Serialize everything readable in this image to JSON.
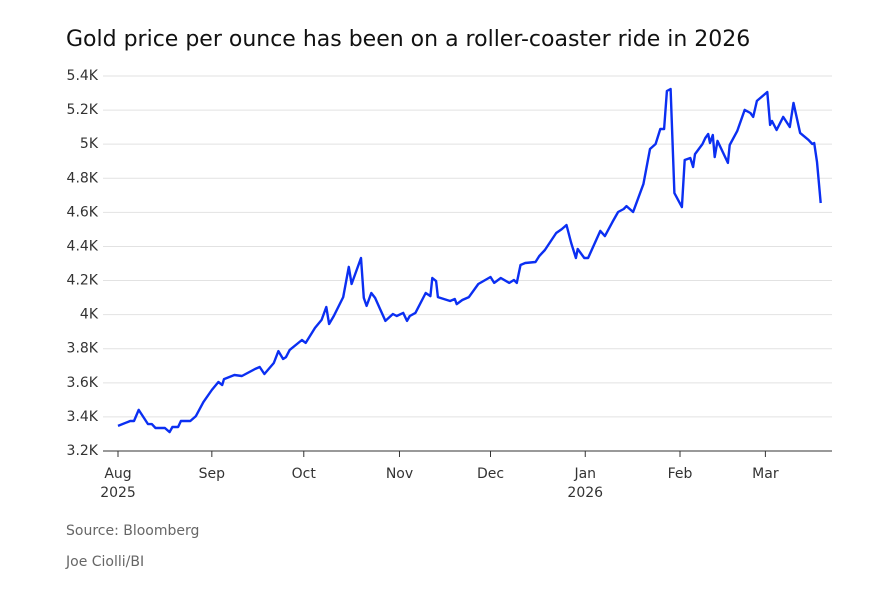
{
  "chart_data": {
    "type": "line",
    "title": "Gold price per ounce has been on a roller-coaster ride in 2026",
    "source": "Source: Bloomberg",
    "credit": "Joe Ciolli/BI",
    "x": [
      0,
      0.13,
      0.17,
      0.22,
      0.32,
      0.36,
      0.4,
      0.5,
      0.55,
      0.58,
      0.64,
      0.67,
      0.77,
      0.83,
      0.91,
      1.0,
      1.07,
      1.11,
      1.13,
      1.24,
      1.32,
      1.46,
      1.51,
      1.56,
      1.66,
      1.71,
      1.76,
      1.79,
      1.83,
      1.96,
      2.0,
      2.1,
      2.17,
      2.22,
      2.25,
      2.3,
      2.4,
      2.46,
      2.49,
      2.59,
      2.62,
      2.65,
      2.7,
      2.74,
      2.85,
      2.93,
      2.97,
      3.04,
      3.08,
      3.11,
      3.17,
      3.28,
      3.33,
      3.35,
      3.39,
      3.41,
      3.54,
      3.59,
      3.61,
      3.67,
      3.74,
      3.84,
      3.97,
      4.01,
      4.08,
      4.17,
      4.22,
      4.25,
      4.29,
      4.34,
      4.45,
      4.49,
      4.55,
      4.67,
      4.73,
      4.78,
      4.83,
      4.88,
      4.9,
      4.97,
      5.01,
      5.14,
      5.19,
      5.27,
      5.33,
      5.39,
      5.42,
      5.49,
      5.6,
      5.67,
      5.73,
      5.78,
      5.82,
      5.85,
      5.89,
      5.93,
      6.01,
      6.04,
      6.1,
      6.13,
      6.15,
      6.23,
      6.26,
      6.29,
      6.31,
      6.34,
      6.36,
      6.39,
      6.5,
      6.52,
      6.6,
      6.68,
      6.74,
      6.77,
      6.81,
      6.92,
      6.95,
      6.97,
      7.02,
      7.09,
      7.16,
      7.2,
      7.27,
      7.36,
      7.4,
      7.42,
      7.45,
      7.49
    ],
    "series": [
      {
        "color": "#0b2ff2",
        "values": [
          3347,
          3376,
          3376,
          3441,
          3358,
          3358,
          3335,
          3335,
          3311,
          3341,
          3341,
          3376,
          3376,
          3405,
          3487,
          3558,
          3605,
          3587,
          3622,
          3646,
          3640,
          3681,
          3693,
          3652,
          3716,
          3786,
          3740,
          3751,
          3793,
          3851,
          3834,
          3922,
          3969,
          4045,
          3945,
          3992,
          4103,
          4280,
          4180,
          4332,
          4098,
          4051,
          4127,
          4098,
          3963,
          4004,
          3992,
          4010,
          3963,
          3992,
          4010,
          4127,
          4109,
          4215,
          4197,
          4103,
          4080,
          4092,
          4062,
          4086,
          4103,
          4180,
          4221,
          4186,
          4215,
          4186,
          4203,
          4186,
          4291,
          4303,
          4309,
          4344,
          4379,
          4479,
          4502,
          4526,
          4420,
          4332,
          4385,
          4332,
          4332,
          4491,
          4461,
          4544,
          4602,
          4620,
          4637,
          4602,
          4766,
          4972,
          5001,
          5089,
          5089,
          5312,
          5324,
          4713,
          4631,
          4907,
          4919,
          4866,
          4942,
          5001,
          5036,
          5060,
          5007,
          5054,
          4925,
          5019,
          4890,
          4995,
          5077,
          5201,
          5183,
          5160,
          5254,
          5306,
          5113,
          5136,
          5083,
          5160,
          5101,
          5242,
          5066,
          5025,
          5001,
          5007,
          4896,
          4655
        ]
      }
    ],
    "xlim": [
      -0.16,
      7.61
    ],
    "xticks": [
      {
        "value": 0,
        "label": "Aug"
      },
      {
        "value": 1.0,
        "label": "Sep"
      },
      {
        "value": 1.98,
        "label": "Oct"
      },
      {
        "value": 3.0,
        "label": "Nov"
      },
      {
        "value": 3.97,
        "label": "Dec"
      },
      {
        "value": 4.98,
        "label": "Jan"
      },
      {
        "value": 5.99,
        "label": "Feb"
      },
      {
        "value": 6.9,
        "label": "Mar"
      }
    ],
    "x_year_labels": [
      {
        "value": 0,
        "label": "2025"
      },
      {
        "value": 4.98,
        "label": "2026"
      }
    ],
    "ylim": [
      3200,
      5400
    ],
    "yticks": [
      {
        "value": 3200,
        "label": "3.2K"
      },
      {
        "value": 3400,
        "label": "3.4K"
      },
      {
        "value": 3600,
        "label": "3.6K"
      },
      {
        "value": 3800,
        "label": "3.8K"
      },
      {
        "value": 4000,
        "label": "4K"
      },
      {
        "value": 4200,
        "label": "4.2K"
      },
      {
        "value": 4400,
        "label": "4.4K"
      },
      {
        "value": 4600,
        "label": "4.6K"
      },
      {
        "value": 4800,
        "label": "4.8K"
      },
      {
        "value": 5000,
        "label": "5K"
      },
      {
        "value": 5200,
        "label": "5.2K"
      },
      {
        "value": 5400,
        "label": "5.4K"
      }
    ],
    "grid": true
  }
}
